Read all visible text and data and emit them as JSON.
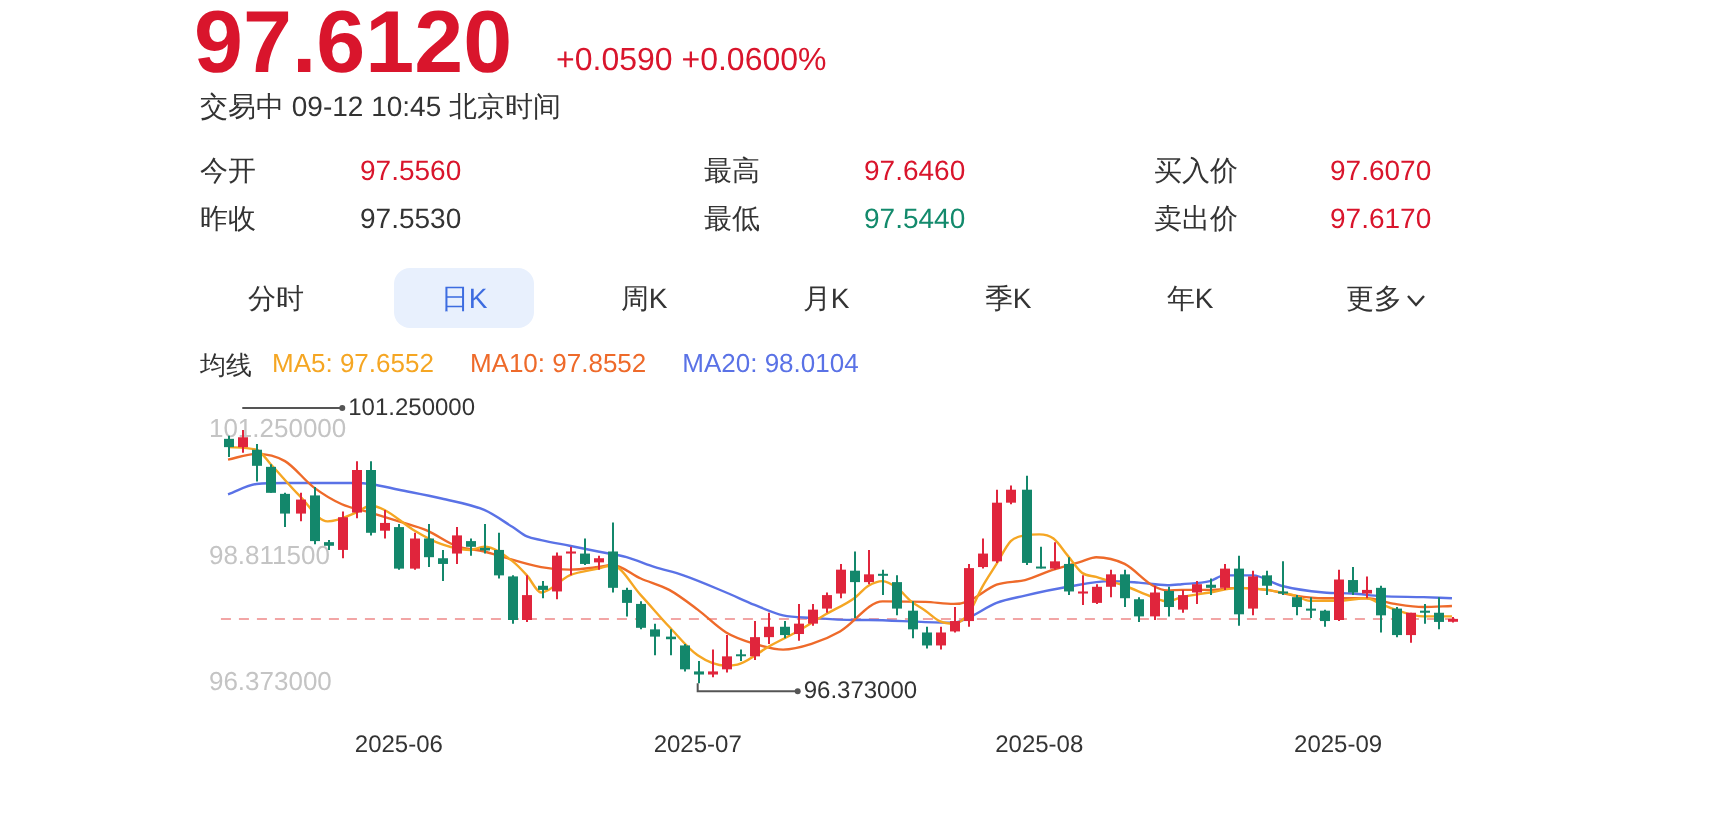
{
  "chart_data": {
    "type": "candlestick",
    "title": "97.6120",
    "subtitle": "+0.0590 +0.0600%",
    "legend_title": "均线",
    "legend": "top left",
    "marker": "none",
    "categories": [
      null,
      null,
      null,
      null,
      null,
      null,
      null,
      null,
      null,
      null,
      null,
      null,
      "2025-06",
      null,
      null,
      null,
      null,
      null,
      null,
      null,
      null,
      null,
      null,
      null,
      null,
      null,
      null,
      null,
      null,
      null,
      null,
      null,
      null,
      "2025-07",
      null,
      null,
      null,
      null,
      null,
      null,
      null,
      null,
      null,
      null,
      null,
      null,
      null,
      null,
      null,
      null,
      null,
      null,
      null,
      null,
      null,
      null,
      null,
      "2025-08",
      null,
      null,
      null,
      null,
      null,
      null,
      null,
      null,
      null,
      null,
      null,
      null,
      null,
      null,
      null,
      null,
      null,
      null,
      null,
      null,
      "2025-09",
      null,
      null,
      null,
      null,
      null,
      null,
      null,
      null
    ],
    "ylim": [
      96.373,
      101.25
    ],
    "yticks": [
      {
        "value": 101.25,
        "label": "101.250000"
      },
      {
        "value": 98.8115,
        "label": "98.811500"
      },
      {
        "value": 96.373,
        "label": "96.373000"
      }
    ],
    "ref_lines": [
      {
        "axis": "y",
        "value": 97.612,
        "color": "#f2a5a5",
        "line_style": "dashed"
      }
    ],
    "annotations": [
      "交易中 09-12 10:45 北京时间",
      "今开",
      "97.5560",
      "最高",
      "97.6460",
      "买入价",
      "97.6070",
      "昨收",
      "97.5530",
      "最低",
      "97.5440",
      "卖出价",
      "97.6170",
      "分时",
      "日K",
      "周K",
      "月K",
      "季K",
      "年K",
      "更多",
      "101.250000",
      "96.373000"
    ],
    "series": [
      {
        "colors": [
          "#13876b",
          "#e0253c",
          "#13876b",
          "#13876b",
          "#13876b",
          "#e0253c",
          "#13876b",
          "#13876b",
          "#e0253c",
          "#e0253c",
          "#13876b",
          "#e0253c",
          "#13876b",
          "#e0253c",
          "#13876b",
          "#13876b",
          "#e0253c",
          "#13876b",
          "#13876b",
          "#13876b",
          "#13876b",
          "#e0253c",
          "#13876b",
          "#e0253c",
          "#e0253c",
          "#13876b",
          "#e0253c",
          "#13876b",
          "#13876b",
          "#13876b",
          "#13876b",
          "#13876b",
          "#13876b",
          "#13876b",
          "#e0253c",
          "#e0253c",
          "#13876b",
          "#e0253c",
          "#e0253c",
          "#13876b",
          "#e0253c",
          "#e0253c",
          "#e0253c",
          "#e0253c",
          "#13876b",
          "#e0253c",
          "#13876b",
          "#13876b",
          "#13876b",
          "#13876b",
          "#e0253c",
          "#e0253c",
          "#e0253c",
          "#e0253c",
          "#e0253c",
          "#e0253c",
          "#13876b",
          "#13876b",
          "#e0253c",
          "#13876b",
          "#e0253c",
          "#e0253c",
          "#e0253c",
          "#13876b",
          "#13876b",
          "#e0253c",
          "#13876b",
          "#e0253c",
          "#e0253c",
          "#13876b",
          "#e0253c",
          "#13876b",
          "#e0253c",
          "#13876b",
          "#13876b",
          "#13876b",
          "#13876b",
          "#13876b",
          "#e0253c",
          "#13876b",
          "#e0253c",
          "#13876b",
          "#13876b",
          "#e0253c",
          "#13876b",
          "#13876b",
          "#e0253c"
        ],
        "ohlc": [
          [
            101.08,
            101.14,
            100.73,
            100.92
          ],
          [
            100.92,
            101.25,
            100.81,
            101.11
          ],
          [
            100.87,
            100.98,
            100.26,
            100.56
          ],
          [
            100.54,
            100.59,
            100.04,
            100.04
          ],
          [
            100.02,
            100.04,
            99.38,
            99.64
          ],
          [
            99.64,
            100.04,
            99.49,
            99.91
          ],
          [
            99.99,
            100.15,
            99.05,
            99.11
          ],
          [
            99.09,
            99.13,
            98.94,
            99.02
          ],
          [
            98.94,
            99.68,
            98.78,
            99.57
          ],
          [
            99.66,
            100.65,
            99.55,
            100.48
          ],
          [
            100.48,
            100.65,
            99.22,
            99.27
          ],
          [
            99.31,
            99.71,
            99.16,
            99.46
          ],
          [
            99.38,
            99.44,
            98.56,
            98.58
          ],
          [
            98.58,
            99.27,
            98.56,
            99.16
          ],
          [
            99.16,
            99.44,
            98.61,
            98.8
          ],
          [
            98.78,
            98.94,
            98.34,
            98.67
          ],
          [
            98.87,
            99.38,
            98.67,
            99.22
          ],
          [
            99.11,
            99.16,
            98.83,
            99.0
          ],
          [
            98.98,
            99.44,
            98.87,
            98.93
          ],
          [
            98.94,
            99.27,
            98.39,
            98.45
          ],
          [
            98.43,
            98.45,
            97.52,
            97.59
          ],
          [
            97.59,
            98.45,
            97.55,
            98.07
          ],
          [
            98.25,
            98.34,
            98.01,
            98.17
          ],
          [
            98.14,
            98.89,
            97.99,
            98.83
          ],
          [
            98.87,
            99.0,
            98.45,
            98.91
          ],
          [
            98.87,
            99.16,
            98.65,
            98.67
          ],
          [
            98.7,
            98.83,
            98.56,
            98.78
          ],
          [
            98.91,
            99.47,
            98.12,
            98.21
          ],
          [
            98.17,
            98.21,
            97.66,
            97.92
          ],
          [
            97.9,
            97.95,
            97.41,
            97.44
          ],
          [
            97.41,
            97.52,
            96.91,
            97.27
          ],
          [
            97.27,
            97.41,
            96.91,
            97.22
          ],
          [
            97.1,
            97.13,
            96.6,
            96.64
          ],
          [
            96.6,
            96.8,
            96.373,
            96.54
          ],
          [
            96.54,
            97.02,
            96.49,
            96.6
          ],
          [
            96.64,
            97.3,
            96.58,
            96.89
          ],
          [
            96.93,
            97.02,
            96.8,
            96.9
          ],
          [
            96.89,
            97.57,
            96.82,
            97.26
          ],
          [
            97.26,
            97.73,
            97.13,
            97.46
          ],
          [
            97.46,
            97.57,
            97.24,
            97.3
          ],
          [
            97.32,
            97.9,
            97.19,
            97.52
          ],
          [
            97.52,
            97.9,
            97.48,
            97.79
          ],
          [
            97.81,
            98.12,
            97.73,
            98.07
          ],
          [
            98.1,
            98.67,
            98.01,
            98.56
          ],
          [
            98.54,
            98.91,
            97.63,
            98.32
          ],
          [
            98.32,
            98.94,
            98.28,
            98.47
          ],
          [
            98.48,
            98.56,
            98.07,
            98.45
          ],
          [
            98.32,
            98.45,
            97.68,
            97.81
          ],
          [
            97.77,
            97.95,
            97.24,
            97.41
          ],
          [
            97.35,
            97.46,
            97.04,
            97.1
          ],
          [
            97.1,
            97.46,
            97.02,
            97.35
          ],
          [
            97.37,
            97.84,
            97.35,
            97.57
          ],
          [
            97.57,
            98.67,
            97.46,
            98.59
          ],
          [
            98.61,
            99.16,
            98.58,
            98.87
          ],
          [
            98.72,
            100.1,
            98.69,
            99.85
          ],
          [
            99.85,
            100.18,
            99.82,
            100.1
          ],
          [
            100.1,
            100.37,
            98.65,
            98.69
          ],
          [
            98.62,
            99.0,
            98.58,
            98.6
          ],
          [
            98.58,
            99.09,
            98.56,
            98.72
          ],
          [
            98.67,
            98.8,
            98.07,
            98.14
          ],
          [
            98.1,
            98.45,
            97.88,
            98.14
          ],
          [
            97.92,
            98.28,
            97.9,
            98.23
          ],
          [
            98.23,
            98.56,
            98.03,
            98.47
          ],
          [
            98.47,
            98.56,
            97.84,
            98.01
          ],
          [
            97.99,
            98.03,
            97.55,
            97.66
          ],
          [
            97.66,
            98.25,
            97.59,
            98.12
          ],
          [
            98.15,
            98.23,
            97.66,
            97.84
          ],
          [
            97.79,
            98.17,
            97.73,
            98.07
          ],
          [
            98.12,
            98.34,
            97.9,
            98.28
          ],
          [
            98.27,
            98.39,
            98.07,
            98.21
          ],
          [
            98.21,
            98.67,
            98.17,
            98.58
          ],
          [
            98.58,
            98.83,
            97.48,
            97.7
          ],
          [
            97.81,
            98.54,
            97.68,
            98.43
          ],
          [
            98.45,
            98.54,
            98.07,
            98.25
          ],
          [
            98.14,
            98.72,
            98.07,
            98.1
          ],
          [
            98.03,
            98.07,
            97.68,
            97.84
          ],
          [
            97.81,
            98.03,
            97.63,
            97.77
          ],
          [
            97.77,
            97.79,
            97.46,
            97.57
          ],
          [
            97.59,
            98.56,
            97.57,
            98.37
          ],
          [
            98.36,
            98.61,
            98.07,
            98.12
          ],
          [
            98.1,
            98.43,
            98.01,
            98.17
          ],
          [
            98.21,
            98.25,
            97.35,
            97.68
          ],
          [
            97.81,
            97.84,
            97.26,
            97.3
          ],
          [
            97.3,
            97.73,
            97.15,
            97.73
          ],
          [
            97.77,
            97.9,
            97.52,
            97.73
          ],
          [
            97.73,
            98.03,
            97.41,
            97.553
          ],
          [
            97.556,
            97.646,
            97.544,
            97.612
          ]
        ]
      },
      {
        "type": "line",
        "name": "MA5: 97.6552",
        "color": "#f5a623",
        "values": [
          100.92,
          null,
          100.87,
          100.59,
          null,
          99.99,
          null,
          99.49,
          null,
          99.66,
          99.79,
          99.71,
          null,
          99.33,
          null,
          99.05,
          null,
          98.94,
          99.0,
          null,
          98.72,
          98.45,
          98.12,
          null,
          98.45,
          null,
          98.58,
          98.64,
          null,
          98.07,
          null,
          97.46,
          null,
          96.91,
          null,
          96.71,
          96.75,
          null,
          97.08,
          null,
          97.37,
          null,
          97.7,
          null,
          98.01,
          98.25,
          98.34,
          98.21,
          97.95,
          97.77,
          97.57,
          97.52,
          97.7,
          98.23,
          98.67,
          99.11,
          99.22,
          99.24,
          99.16,
          98.83,
          98.5,
          98.42,
          null,
          98.25,
          null,
          98.03,
          97.95,
          98.03,
          null,
          98.12,
          null,
          98.21,
          null,
          98.17,
          null,
          98.06,
          97.96,
          null,
          97.96,
          null,
          98.01,
          97.9,
          97.79,
          null,
          97.66,
          null,
          97.66
        ]
      },
      {
        "type": "line",
        "name": "MA10: 97.8552",
        "color": "#ee6a2a",
        "values": [
          100.68,
          null,
          100.79,
          null,
          100.65,
          null,
          100.15,
          null,
          99.82,
          null,
          99.66,
          null,
          99.49,
          null,
          99.31,
          null,
          99.02,
          null,
          98.91,
          98.83,
          null,
          null,
          98.61,
          null,
          98.56,
          null,
          98.61,
          98.65,
          null,
          98.39,
          null,
          98.17,
          null,
          97.79,
          null,
          97.35,
          null,
          97.13,
          null,
          97.02,
          null,
          97.13,
          null,
          97.37,
          null,
          null,
          97.95,
          null,
          null,
          97.94,
          null,
          97.9,
          97.95,
          null,
          98.27,
          null,
          98.36,
          null,
          98.56,
          null,
          98.72,
          98.8,
          null,
          98.67,
          null,
          98.25,
          98.16,
          98.17,
          null,
          98.17,
          null,
          98.21,
          null,
          98.17,
          null,
          98.06,
          null,
          98.01,
          null,
          null,
          98.01,
          null,
          97.9,
          null,
          97.84,
          null,
          97.86
        ]
      },
      {
        "type": "line",
        "name": "MA20: 98.0104",
        "color": "#5a72e6",
        "values": [
          100.01,
          null,
          100.21,
          null,
          100.23,
          null,
          null,
          null,
          null,
          100.23,
          100.21,
          null,
          100.1,
          null,
          null,
          99.93,
          null,
          null,
          99.71,
          null,
          99.38,
          99.2,
          99.13,
          null,
          99.02,
          null,
          98.91,
          null,
          98.8,
          null,
          98.61,
          null,
          98.45,
          null,
          null,
          98.12,
          null,
          97.88,
          null,
          97.68,
          null,
          97.63,
          null,
          null,
          97.59,
          97.59,
          null,
          null,
          null,
          97.55,
          null,
          97.54,
          97.63,
          null,
          97.92,
          null,
          98.06,
          null,
          null,
          98.23,
          null,
          null,
          98.34,
          null,
          98.31,
          null,
          98.26,
          98.28,
          null,
          98.34,
          98.45,
          null,
          98.45,
          null,
          98.25,
          null,
          null,
          98.12,
          null,
          98.1,
          null,
          98.05,
          null,
          null,
          98.03,
          null,
          98.01
        ]
      }
    ]
  }
}
